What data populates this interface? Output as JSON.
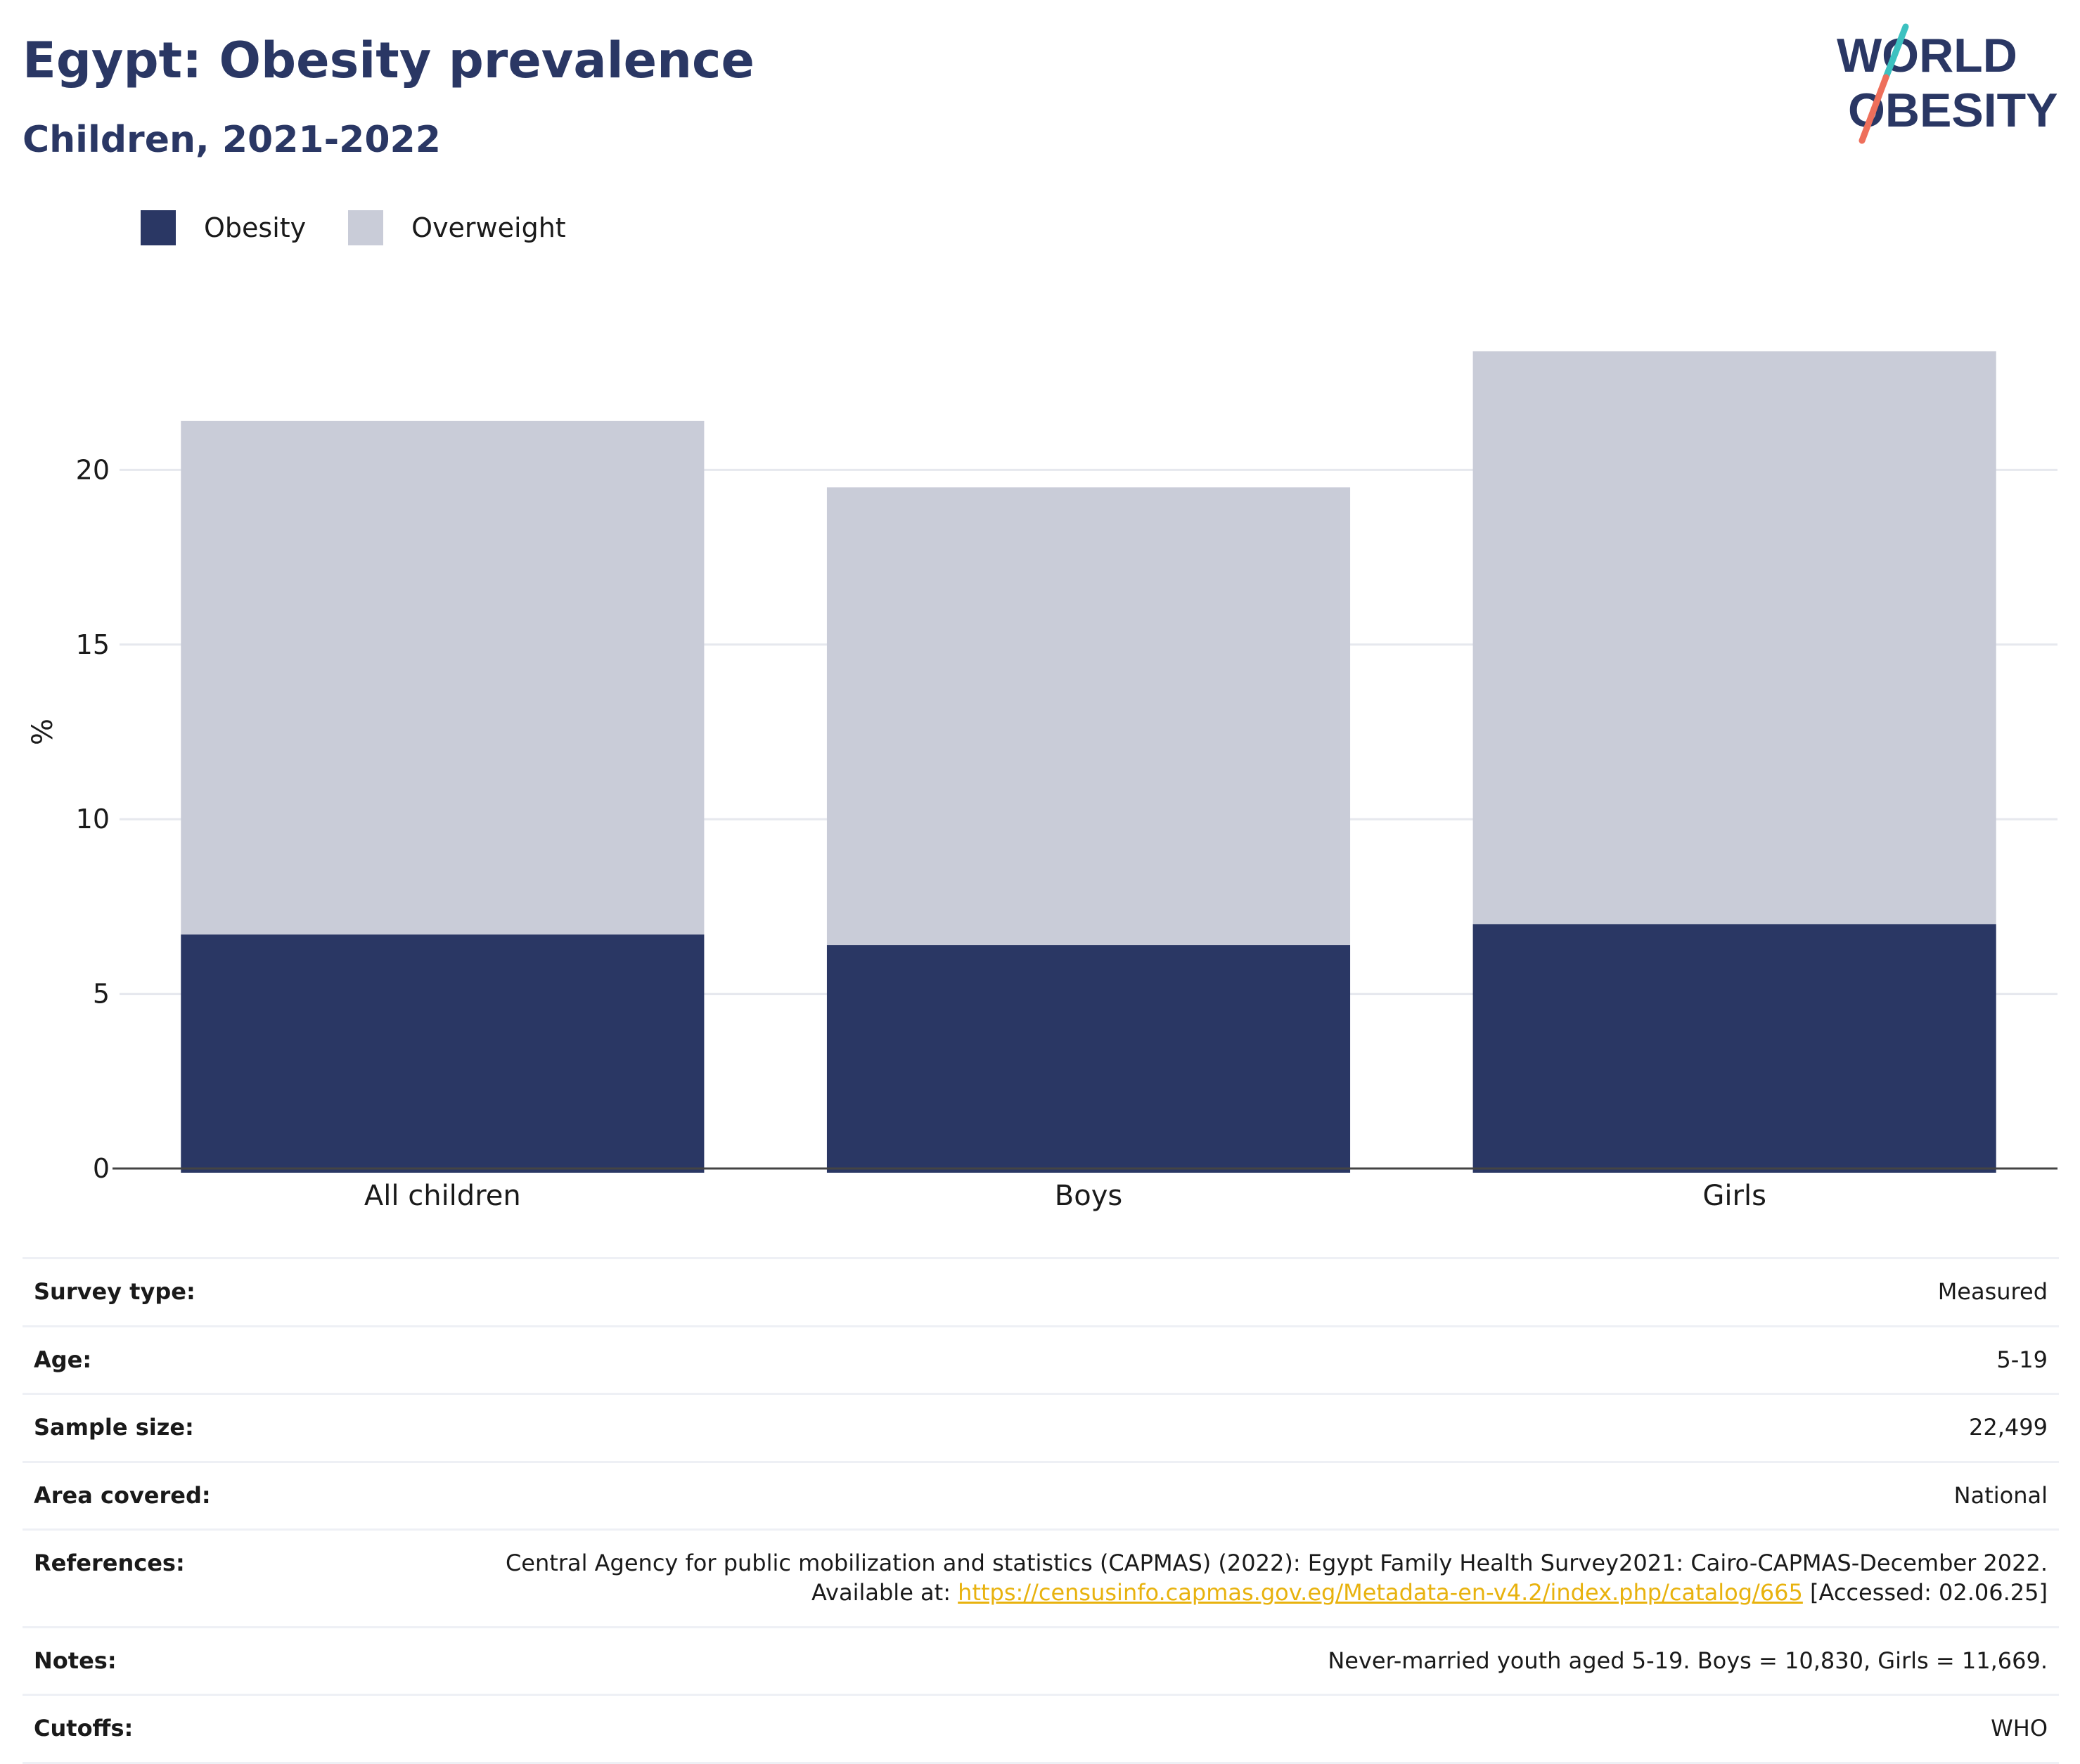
{
  "header": {
    "title": "Egypt: Obesity prevalence",
    "subtitle": "Children, 2021-2022",
    "logo_line1": "WORLD",
    "logo_line2": "OBESITY"
  },
  "colors": {
    "obesity": "#2a3764",
    "overweight": "#c9ccd8",
    "title": "#2a3764",
    "link": "#e8b20e",
    "logo_teal": "#3cc1c0",
    "logo_coral": "#ee6f5b"
  },
  "chart_data": {
    "type": "bar",
    "stacked": true,
    "categories": [
      "All children",
      "Boys",
      "Girls"
    ],
    "series": [
      {
        "name": "Obesity",
        "values": [
          6.7,
          6.4,
          7.0
        ]
      },
      {
        "name": "Overweight",
        "values": [
          14.7,
          13.1,
          16.4
        ]
      }
    ],
    "ylabel": "%",
    "xlabel": "",
    "ylim": [
      0,
      25
    ],
    "yticks": [
      0,
      5,
      10,
      15,
      20
    ],
    "grid": true,
    "legend_position": "top-left"
  },
  "meta": {
    "survey_type": {
      "label": "Survey type:",
      "value": "Measured"
    },
    "age": {
      "label": "Age:",
      "value": "5-19"
    },
    "sample_size": {
      "label": "Sample size:",
      "value": "22,499"
    },
    "area": {
      "label": "Area covered:",
      "value": "National"
    },
    "references": {
      "label": "References:",
      "text_before": "Central Agency for public mobilization and statistics (CAPMAS) (2022): Egypt Family Health Survey2021: Cairo-CAPMAS-December 2022. Available at: ",
      "link": "https://censusinfo.capmas.gov.eg/Metadata-en-v4.2/index.php/catalog/665",
      "text_after": " [Accessed: 02.06.25]"
    },
    "notes": {
      "label": "Notes:",
      "value": "Never-married youth aged 5-19. Boys = 10,830, Girls = 11,669."
    },
    "cutoffs": {
      "label": "Cutoffs:",
      "value": "WHO"
    }
  }
}
